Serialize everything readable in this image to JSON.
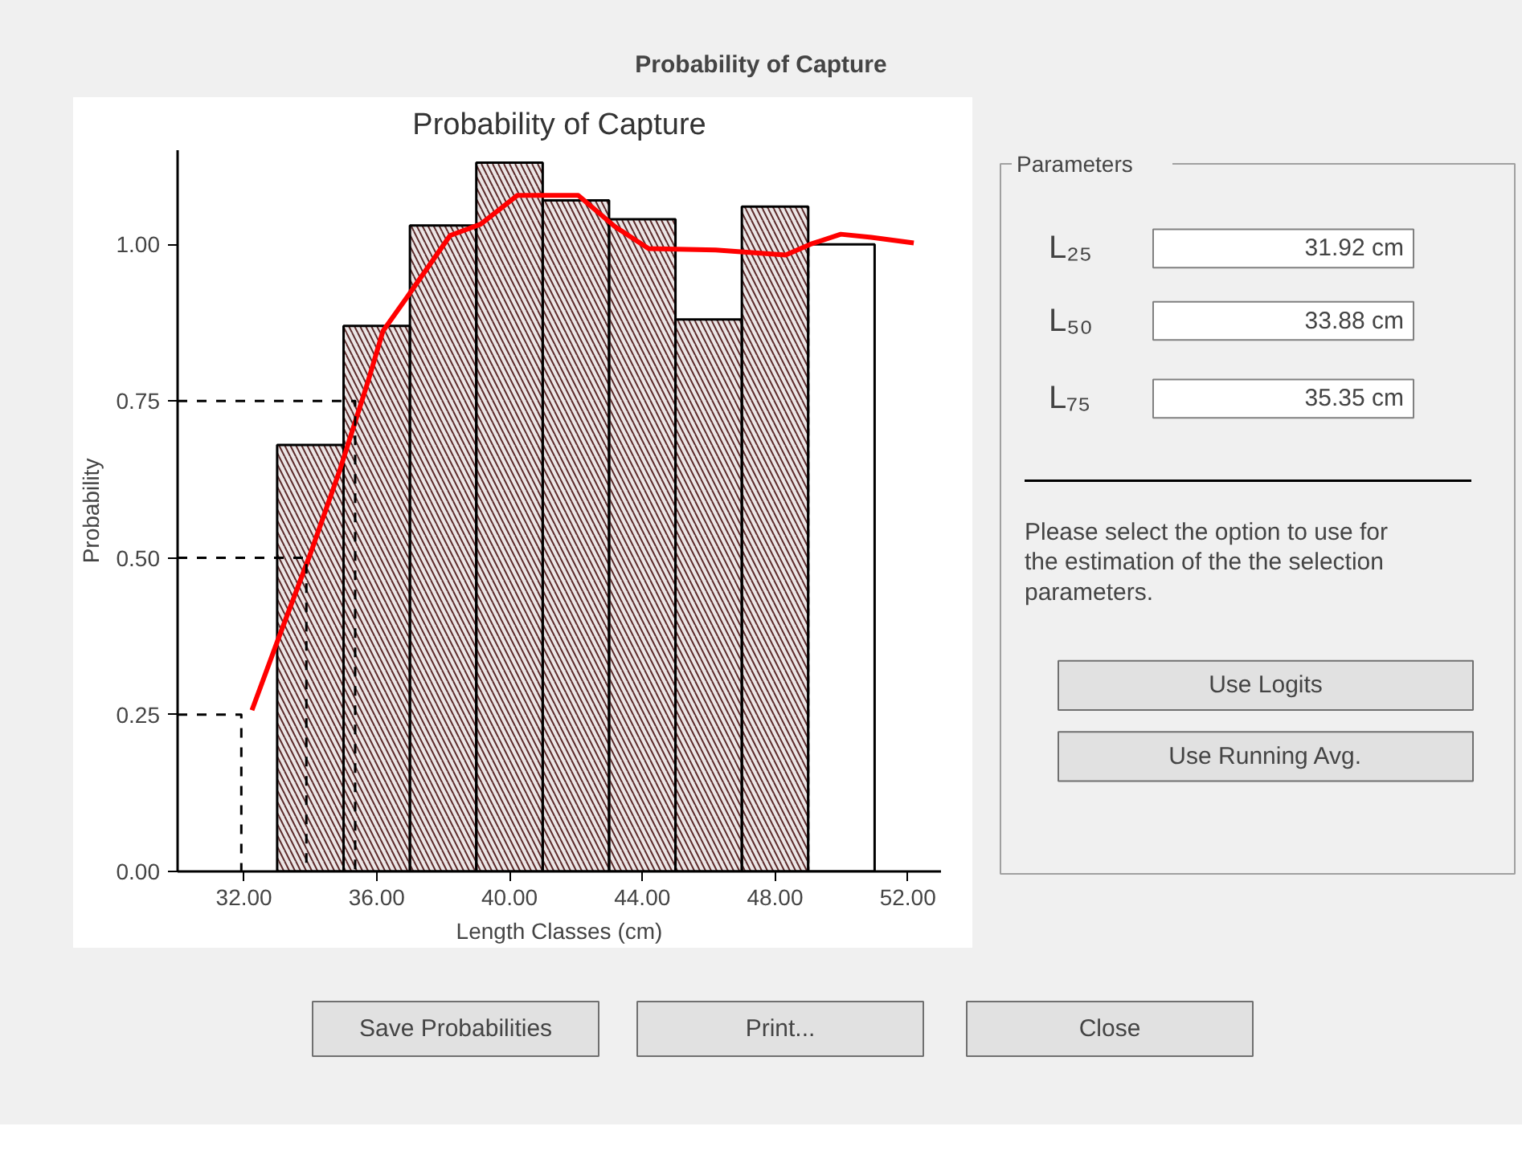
{
  "chart_data": [
    {
      "type": "other",
      "title": "Probability of Capture",
      "annotations": [
        "Save Probabilities",
        "Print...",
        "Close"
      ]
    },
    {
      "type": "histogram",
      "title": "Probability of Capture",
      "xlabel": "Length Classes (cm)",
      "ylabel": "Probability",
      "bins": [
        33,
        35,
        37,
        39,
        41,
        43,
        45,
        47,
        49,
        51
      ],
      "values": [
        0.68,
        0.87,
        1.03,
        1.13,
        1.07,
        1.04,
        0.88,
        1.06,
        1.0
      ],
      "colors": [
        "#5c2b2b",
        "#5c2b2b",
        "#5c2b2b",
        "#5c2b2b",
        "#5c2b2b",
        "#5c2b2b",
        "#5c2b2b",
        "#5c2b2b",
        "#ffffff"
      ],
      "series": [
        {
          "type": "line",
          "color": "#ff0000",
          "x": [
            32.24,
            33.07,
            33.99,
            34.9,
            35.73,
            36.19,
            36.93,
            38.21,
            39.13,
            40.24,
            42.07,
            43.18,
            44.19,
            46.21,
            48.32,
            49.06,
            49.98,
            50.9,
            52.18
          ],
          "values": [
            0.257,
            0.376,
            0.505,
            0.642,
            0.78,
            0.862,
            0.917,
            1.014,
            1.032,
            1.078,
            1.078,
            1.028,
            0.993,
            0.991,
            0.983,
            1.0,
            1.016,
            1.011,
            1.002
          ]
        },
        {
          "type": "line",
          "color": "#000000",
          "line_style": "dashed",
          "x": [
            30,
            31.92,
            31.92
          ],
          "values": [
            0.25,
            0.25,
            0
          ]
        },
        {
          "type": "line",
          "color": "#000000",
          "line_style": "dashed",
          "x": [
            30,
            33.88,
            33.88
          ],
          "values": [
            0.5,
            0.5,
            0
          ]
        },
        {
          "type": "line",
          "color": "#000000",
          "line_style": "dashed",
          "x": [
            30,
            35.35,
            35.35
          ],
          "values": [
            0.75,
            0.75,
            0
          ]
        }
      ],
      "xlim": [
        30,
        53
      ],
      "ylim": [
        0,
        1.15
      ],
      "xticks": [
        {
          "value": 32,
          "label": "32.00"
        },
        {
          "value": 36,
          "label": "36.00"
        },
        {
          "value": 40,
          "label": "40.00"
        },
        {
          "value": 44,
          "label": "44.00"
        },
        {
          "value": 48,
          "label": "48.00"
        },
        {
          "value": 52,
          "label": "52.00"
        }
      ],
      "yticks": [
        {
          "value": 0,
          "label": "0.00"
        },
        {
          "value": 0.25,
          "label": "0.25"
        },
        {
          "value": 0.5,
          "label": "0.50"
        },
        {
          "value": 0.75,
          "label": "0.75"
        },
        {
          "value": 1,
          "label": "1.00"
        }
      ]
    },
    {
      "type": "other",
      "title": "Parameters",
      "annotations": [
        "L₂₅",
        "31.92 cm",
        "L₅₀",
        "33.88 cm",
        "L₇₅",
        "35.35 cm",
        "Please select the option to use for the estimation of the the selection parameters.",
        "Use Logits",
        "Use Running Avg."
      ]
    }
  ]
}
